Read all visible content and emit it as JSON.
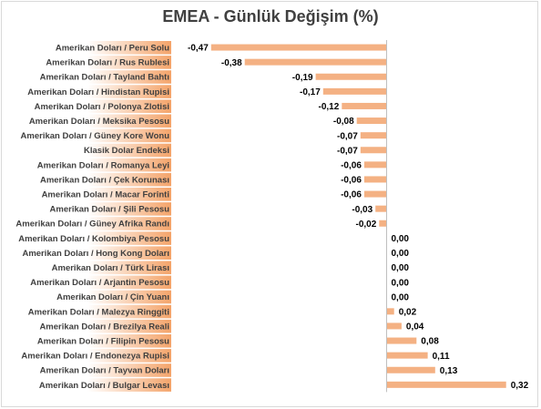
{
  "chart_data": {
    "type": "bar",
    "orientation": "horizontal",
    "title": "EMEA - Günlük Değişim (%)",
    "xlabel": "",
    "ylabel": "",
    "categories": [
      "Amerikan Doları / Peru Solu",
      "Amerikan Doları / Rus Rublesi",
      "Amerikan Doları / Tayland Bahtı",
      "Amerikan Doları / Hindistan Rupisi",
      "Amerikan Doları / Polonya Zlotisi",
      "Amerikan Doları / Meksika Pesosu",
      "Amerikan Doları / Güney Kore Wonu",
      "Klasik Dolar Endeksi",
      "Amerikan Doları / Romanya Leyi",
      "Amerikan Doları / Çek Korunası",
      "Amerikan Doları / Macar Forinti",
      "Amerikan Doları / Şili Pesosu",
      "Amerikan Doları / Güney Afrika Randı",
      "Amerikan Doları / Kolombiya Pesosu",
      "Amerikan Doları / Hong Kong Doları",
      "Amerikan Doları / Türk Lirası",
      "Amerikan Doları / Arjantin Pesosu",
      "Amerikan Doları / Çin Yuanı",
      "Amerikan Doları / Malezya Ringgiti",
      "Amerikan Doları / Brezilya Reali",
      "Amerikan Doları / Filipin Pesosu",
      "Amerikan Doları / Endonezya Rupisi",
      "Amerikan Doları / Tayvan Doları",
      "Amerikan Doları / Bulgar Levası"
    ],
    "values": [
      -0.47,
      -0.38,
      -0.19,
      -0.17,
      -0.12,
      -0.08,
      -0.07,
      -0.07,
      -0.06,
      -0.06,
      -0.06,
      -0.03,
      -0.02,
      0.0,
      0.0,
      0.0,
      0.0,
      0.0,
      0.02,
      0.04,
      0.08,
      0.11,
      0.13,
      0.32
    ],
    "value_labels": [
      "-0,47",
      "-0,38",
      "-0,19",
      "-0,17",
      "-0,12",
      "-0,08",
      "-0,07",
      "-0,07",
      "-0,06",
      "-0,06",
      "-0,06",
      "-0,03",
      "-0,02",
      "0,00",
      "0,00",
      "0,00",
      "0,00",
      "0,00",
      "0,02",
      "0,04",
      "0,08",
      "0,11",
      "0,13",
      "0,32"
    ],
    "xlim": [
      -0.6,
      0.35
    ],
    "grid": false,
    "legend": "none",
    "colors": {
      "bar": "#f4b183",
      "label_gradient_start": "#ffffff",
      "label_gradient_end": "#f4a46a",
      "axis": "#bfbfbf"
    }
  }
}
